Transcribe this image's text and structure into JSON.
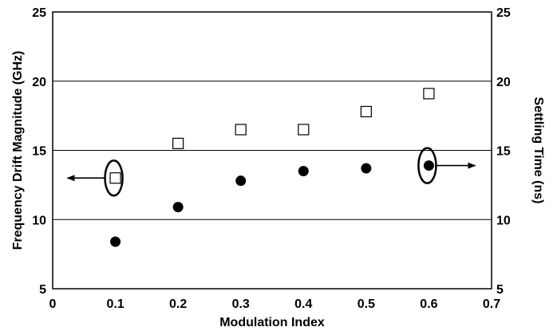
{
  "chart_data": {
    "type": "scatter",
    "xlabel": "Modulation Index",
    "ylabel": "Frequency Drift Magnitude (GHz)",
    "y2label": "Settling Time (ns)",
    "xlim": [
      0,
      0.7
    ],
    "ylim": [
      5,
      25
    ],
    "y2lim": [
      5,
      25
    ],
    "xticks": [
      0,
      0.1,
      0.2,
      0.3,
      0.4,
      0.5,
      0.6,
      0.7
    ],
    "xtick_labels": [
      "0",
      "0.1",
      "0.2",
      "0.3",
      "0.4",
      "0.5",
      "0.6",
      "0.7"
    ],
    "yticks": [
      5,
      10,
      15,
      20,
      25
    ],
    "ytick_labels": [
      "5",
      "10",
      "15",
      "20",
      "25"
    ],
    "y2tick_labels": [
      "5",
      "10",
      "15",
      "20",
      "25"
    ],
    "grid": "horizontal",
    "series": [
      {
        "axis": "left",
        "marker": "open-square",
        "x": [
          0.1,
          0.2,
          0.3,
          0.4,
          0.5,
          0.6
        ],
        "y": [
          13.0,
          15.5,
          16.5,
          16.5,
          17.8,
          19.1
        ]
      },
      {
        "axis": "right",
        "marker": "filled-circle",
        "x": [
          0.1,
          0.2,
          0.3,
          0.4,
          0.5,
          0.6
        ],
        "y": [
          8.4,
          10.9,
          12.8,
          13.5,
          13.7,
          13.9
        ]
      }
    ],
    "annotations": [
      {
        "type": "ellipse-arrow",
        "target_series": 0,
        "point_index": 0,
        "arrow_direction": "left"
      },
      {
        "type": "ellipse-arrow",
        "target_series": 1,
        "point_index": 5,
        "arrow_direction": "right"
      }
    ]
  }
}
